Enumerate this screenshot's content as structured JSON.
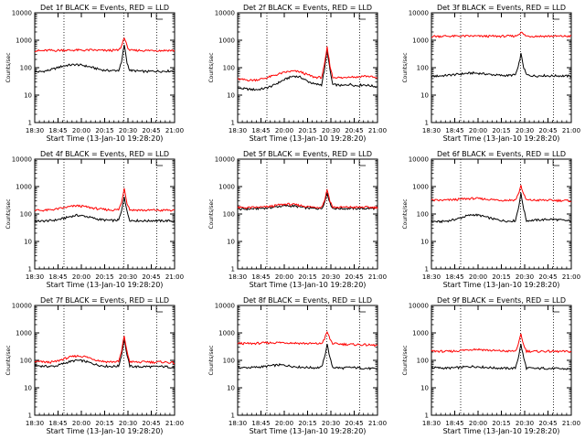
{
  "chart_data": [
    {
      "type": "line",
      "title": "Det 1f BLACK = Events, RED = LLD",
      "xlabel": "Start Time (13-Jan-10 19:28:20)",
      "ylabel": "Counts/sec",
      "xticks": [
        "18:30",
        "18:45",
        "20:00",
        "20:15",
        "20:30",
        "20:45",
        "21:00"
      ],
      "yticks": [
        "1",
        "10",
        "100",
        "1000",
        "10000"
      ],
      "x": [
        0,
        0.05,
        0.1,
        0.15,
        0.2,
        0.25,
        0.3,
        0.35,
        0.4,
        0.45,
        0.5,
        0.55,
        0.6,
        0.62,
        0.64,
        0.66,
        0.68,
        0.7,
        0.75,
        0.8,
        0.85,
        0.9,
        0.95,
        1.0
      ],
      "series": [
        {
          "color": "#000000",
          "values": [
            70,
            72,
            80,
            95,
            115,
            125,
            130,
            120,
            105,
            90,
            80,
            78,
            80,
            150,
            700,
            150,
            80,
            78,
            75,
            72,
            75,
            74,
            76,
            74
          ]
        },
        {
          "color": "#ff0000",
          "values": [
            420,
            410,
            430,
            420,
            440,
            430,
            440,
            430,
            440,
            430,
            420,
            430,
            430,
            600,
            1300,
            600,
            430,
            420,
            430,
            420,
            430,
            420,
            430,
            420
          ]
        }
      ]
    },
    {
      "type": "line",
      "title": "Det 2f BLACK = Events, RED = LLD",
      "xlabel": "Start Time (13-Jan-10 19:28:20)",
      "ylabel": "Counts/sec",
      "xticks": [
        "18:30",
        "18:45",
        "20:00",
        "20:15",
        "20:30",
        "20:45",
        "21:00"
      ],
      "yticks": [
        "1",
        "10",
        "100",
        "1000",
        "10000"
      ],
      "x": [
        0,
        0.05,
        0.1,
        0.15,
        0.2,
        0.25,
        0.3,
        0.35,
        0.4,
        0.45,
        0.5,
        0.55,
        0.6,
        0.62,
        0.64,
        0.66,
        0.68,
        0.7,
        0.75,
        0.8,
        0.85,
        0.9,
        0.95,
        1.0
      ],
      "series": [
        {
          "color": "#000000",
          "values": [
            18,
            17,
            16,
            16,
            18,
            22,
            30,
            40,
            50,
            45,
            32,
            25,
            24,
            80,
            450,
            80,
            24,
            24,
            22,
            25,
            22,
            24,
            22,
            20
          ]
        },
        {
          "color": "#ff0000",
          "values": [
            38,
            36,
            35,
            37,
            42,
            50,
            60,
            70,
            75,
            70,
            55,
            45,
            44,
            120,
            550,
            120,
            44,
            45,
            42,
            48,
            45,
            50,
            48,
            40
          ]
        }
      ]
    },
    {
      "type": "line",
      "title": "Det 3f BLACK = Events, RED = LLD",
      "xlabel": "Start Time (13-Jan-10 19:28:20)",
      "ylabel": "Counts/sec",
      "xticks": [
        "18:30",
        "18:45",
        "20:00",
        "20:15",
        "20:30",
        "20:45",
        "21:00"
      ],
      "yticks": [
        "1",
        "10",
        "100",
        "1000",
        "10000"
      ],
      "x": [
        0,
        0.05,
        0.1,
        0.15,
        0.2,
        0.25,
        0.3,
        0.35,
        0.4,
        0.45,
        0.5,
        0.55,
        0.6,
        0.62,
        0.64,
        0.66,
        0.68,
        0.7,
        0.75,
        0.8,
        0.85,
        0.9,
        0.95,
        1.0
      ],
      "series": [
        {
          "color": "#000000",
          "values": [
            48,
            50,
            52,
            55,
            58,
            62,
            64,
            62,
            58,
            55,
            52,
            52,
            55,
            100,
            320,
            100,
            55,
            52,
            50,
            52,
            50,
            51,
            50,
            49
          ]
        },
        {
          "color": "#ff0000",
          "values": [
            1400,
            1400,
            1420,
            1400,
            1420,
            1410,
            1420,
            1400,
            1410,
            1400,
            1400,
            1410,
            1420,
            1600,
            2000,
            1600,
            1420,
            1400,
            1410,
            1400,
            1410,
            1400,
            1410,
            1400
          ]
        }
      ]
    },
    {
      "type": "line",
      "title": "Det 4f BLACK = Events, RED = LLD",
      "xlabel": "Start Time (13-Jan-10 19:28:20)",
      "ylabel": "Counts/sec",
      "xticks": [
        "18:30",
        "18:45",
        "20:00",
        "20:15",
        "20:30",
        "20:45",
        "21:00"
      ],
      "yticks": [
        "1",
        "10",
        "100",
        "1000",
        "10000"
      ],
      "x": [
        0,
        0.05,
        0.1,
        0.15,
        0.2,
        0.25,
        0.3,
        0.35,
        0.4,
        0.45,
        0.5,
        0.55,
        0.6,
        0.62,
        0.64,
        0.66,
        0.68,
        0.7,
        0.75,
        0.8,
        0.85,
        0.9,
        0.95,
        1.0
      ],
      "series": [
        {
          "color": "#000000",
          "values": [
            55,
            55,
            57,
            60,
            68,
            80,
            90,
            85,
            75,
            65,
            60,
            58,
            60,
            120,
            450,
            120,
            60,
            58,
            57,
            56,
            58,
            56,
            57,
            55
          ]
        },
        {
          "color": "#ff0000",
          "values": [
            140,
            135,
            140,
            150,
            165,
            185,
            200,
            190,
            170,
            155,
            145,
            140,
            145,
            250,
            900,
            250,
            145,
            140,
            140,
            135,
            140,
            135,
            140,
            130
          ]
        }
      ]
    },
    {
      "type": "line",
      "title": "Det 5f BLACK = Events, RED = LLD",
      "xlabel": "Start Time (13-Jan-10 19:28:20)",
      "ylabel": "Counts/sec",
      "xticks": [
        "18:30",
        "18:45",
        "20:00",
        "20:15",
        "20:30",
        "20:45",
        "21:00"
      ],
      "yticks": [
        "1",
        "10",
        "100",
        "1000",
        "10000"
      ],
      "x": [
        0,
        0.05,
        0.1,
        0.15,
        0.2,
        0.25,
        0.3,
        0.35,
        0.4,
        0.45,
        0.5,
        0.55,
        0.6,
        0.62,
        0.64,
        0.66,
        0.68,
        0.7,
        0.75,
        0.8,
        0.85,
        0.9,
        0.95,
        1.0
      ],
      "series": [
        {
          "color": "#000000",
          "values": [
            150,
            150,
            155,
            160,
            165,
            175,
            190,
            200,
            195,
            180,
            165,
            160,
            160,
            250,
            600,
            250,
            160,
            160,
            158,
            160,
            160,
            158,
            160,
            160
          ]
        },
        {
          "color": "#ff0000",
          "values": [
            170,
            170,
            172,
            175,
            180,
            195,
            215,
            230,
            220,
            205,
            185,
            178,
            178,
            300,
            780,
            300,
            178,
            175,
            175,
            178,
            175,
            178,
            175,
            172
          ]
        }
      ]
    },
    {
      "type": "line",
      "title": "Det 6f BLACK = Events, RED = LLD",
      "xlabel": "Start Time (13-Jan-10 19:28:20)",
      "ylabel": "Counts/sec",
      "xticks": [
        "18:30",
        "18:45",
        "20:00",
        "20:15",
        "20:30",
        "20:45",
        "21:00"
      ],
      "yticks": [
        "1",
        "10",
        "100",
        "1000",
        "10000"
      ],
      "x": [
        0,
        0.05,
        0.1,
        0.15,
        0.2,
        0.25,
        0.3,
        0.35,
        0.4,
        0.45,
        0.5,
        0.55,
        0.6,
        0.62,
        0.64,
        0.66,
        0.68,
        0.7,
        0.75,
        0.8,
        0.85,
        0.9,
        0.95,
        1.0
      ],
      "series": [
        {
          "color": "#000000",
          "values": [
            55,
            52,
            55,
            60,
            70,
            85,
            95,
            88,
            75,
            65,
            58,
            55,
            57,
            150,
            550,
            150,
            57,
            58,
            60,
            62,
            65,
            62,
            58,
            55
          ]
        },
        {
          "color": "#ff0000",
          "values": [
            320,
            315,
            320,
            330,
            345,
            360,
            370,
            360,
            345,
            330,
            320,
            320,
            325,
            500,
            1100,
            500,
            325,
            320,
            318,
            320,
            315,
            312,
            310,
            300
          ]
        }
      ]
    },
    {
      "type": "line",
      "title": "Det 7f BLACK = Events, RED = LLD",
      "xlabel": "Start Time (13-Jan-10 19:28:20)",
      "ylabel": "Counts/sec",
      "xticks": [
        "18:30",
        "18:45",
        "20:00",
        "20:15",
        "20:30",
        "20:45",
        "21:00"
      ],
      "yticks": [
        "1",
        "10",
        "100",
        "1000",
        "10000"
      ],
      "x": [
        0,
        0.05,
        0.1,
        0.15,
        0.2,
        0.25,
        0.3,
        0.35,
        0.4,
        0.45,
        0.5,
        0.55,
        0.6,
        0.62,
        0.64,
        0.66,
        0.68,
        0.7,
        0.75,
        0.8,
        0.85,
        0.9,
        0.95,
        1.0
      ],
      "series": [
        {
          "color": "#000000",
          "values": [
            65,
            62,
            60,
            62,
            75,
            90,
            100,
            95,
            80,
            68,
            62,
            60,
            62,
            150,
            600,
            150,
            62,
            60,
            58,
            60,
            58,
            60,
            58,
            55
          ]
        },
        {
          "color": "#ff0000",
          "values": [
            90,
            88,
            85,
            90,
            110,
            130,
            145,
            140,
            120,
            100,
            90,
            88,
            90,
            200,
            800,
            200,
            90,
            88,
            85,
            90,
            85,
            88,
            85,
            80
          ]
        }
      ]
    },
    {
      "type": "line",
      "title": "Det 8f BLACK = Events, RED = LLD",
      "xlabel": "Start Time (13-Jan-10 19:28:20)",
      "ylabel": "Counts/sec",
      "xticks": [
        "18:30",
        "18:45",
        "20:00",
        "20:15",
        "20:30",
        "20:45",
        "21:00"
      ],
      "yticks": [
        "1",
        "10",
        "100",
        "1000",
        "10000"
      ],
      "x": [
        0,
        0.05,
        0.1,
        0.15,
        0.2,
        0.25,
        0.3,
        0.35,
        0.4,
        0.45,
        0.5,
        0.55,
        0.6,
        0.62,
        0.64,
        0.66,
        0.68,
        0.7,
        0.75,
        0.8,
        0.85,
        0.9,
        0.95,
        1.0
      ],
      "series": [
        {
          "color": "#000000",
          "values": [
            55,
            54,
            55,
            57,
            60,
            65,
            68,
            65,
            60,
            57,
            55,
            54,
            56,
            120,
            400,
            120,
            56,
            55,
            52,
            55,
            54,
            52,
            50,
            48
          ]
        },
        {
          "color": "#ff0000",
          "values": [
            420,
            410,
            410,
            420,
            430,
            440,
            445,
            440,
            430,
            420,
            410,
            405,
            410,
            600,
            1100,
            600,
            410,
            400,
            390,
            380,
            375,
            370,
            360,
            350
          ]
        }
      ]
    },
    {
      "type": "line",
      "title": "Det 9f BLACK = Events, RED = LLD",
      "xlabel": "Start Time (13-Jan-10 19:28:20)",
      "ylabel": "Counts/sec",
      "xticks": [
        "18:30",
        "18:45",
        "20:00",
        "20:15",
        "20:30",
        "20:45",
        "21:00"
      ],
      "yticks": [
        "1",
        "10",
        "100",
        "1000",
        "10000"
      ],
      "x": [
        0,
        0.05,
        0.1,
        0.15,
        0.2,
        0.25,
        0.3,
        0.35,
        0.4,
        0.45,
        0.5,
        0.55,
        0.6,
        0.62,
        0.64,
        0.66,
        0.68,
        0.7,
        0.75,
        0.8,
        0.85,
        0.9,
        0.95,
        1.0
      ],
      "series": [
        {
          "color": "#000000",
          "values": [
            55,
            53,
            52,
            53,
            55,
            58,
            60,
            58,
            55,
            53,
            52,
            51,
            52,
            120,
            380,
            120,
            52,
            52,
            50,
            52,
            50,
            50,
            49,
            48
          ]
        },
        {
          "color": "#ff0000",
          "values": [
            220,
            215,
            210,
            215,
            225,
            240,
            255,
            250,
            235,
            225,
            220,
            215,
            218,
            350,
            900,
            350,
            218,
            215,
            210,
            215,
            212,
            210,
            210,
            208
          ]
        }
      ]
    }
  ]
}
